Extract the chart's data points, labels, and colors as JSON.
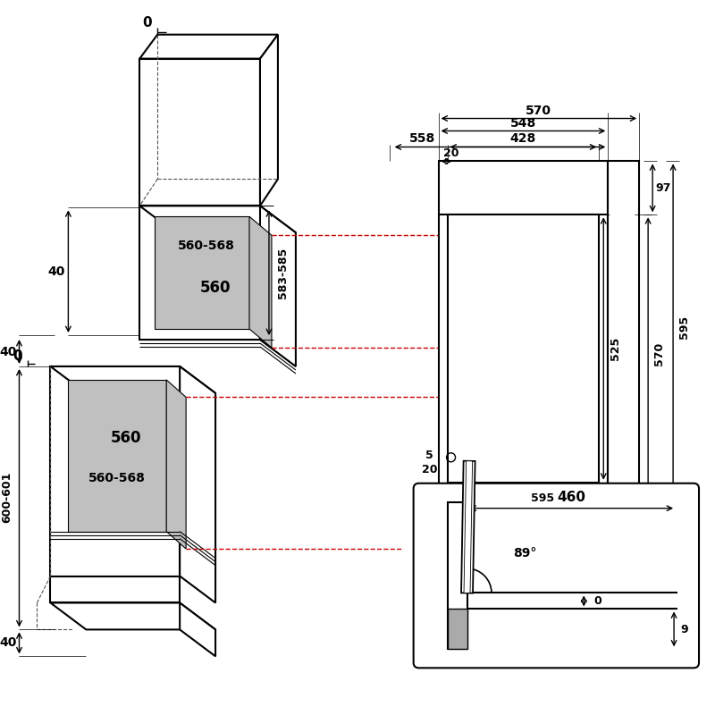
{
  "bg_color": "#ffffff",
  "line_color": "#000000",
  "dashed_color": "#555555",
  "red_dashed_color": "#cc0000",
  "gray_fill": "#c0c0c0",
  "annotations": {
    "top_0": "0",
    "left_upper_0": "0",
    "left_lower_40": "40",
    "left_upper_40": "40",
    "left_600": "600-601",
    "left_560_568": "560-568",
    "left_560": "560",
    "mid_583": "583-585",
    "mid_upper_560_568": "560-568",
    "mid_upper_560": "560",
    "right_570_top": "570",
    "right_548": "548",
    "right_558": "558",
    "right_428": "428",
    "right_20_top": "20",
    "right_97": "97",
    "right_525": "525",
    "right_570_mid": "570",
    "right_595_right": "595",
    "right_5": "5",
    "right_20_bot": "20",
    "right_595_bot": "595",
    "inset_460": "460",
    "inset_89": "89°",
    "inset_0": "0",
    "inset_9": "9"
  }
}
